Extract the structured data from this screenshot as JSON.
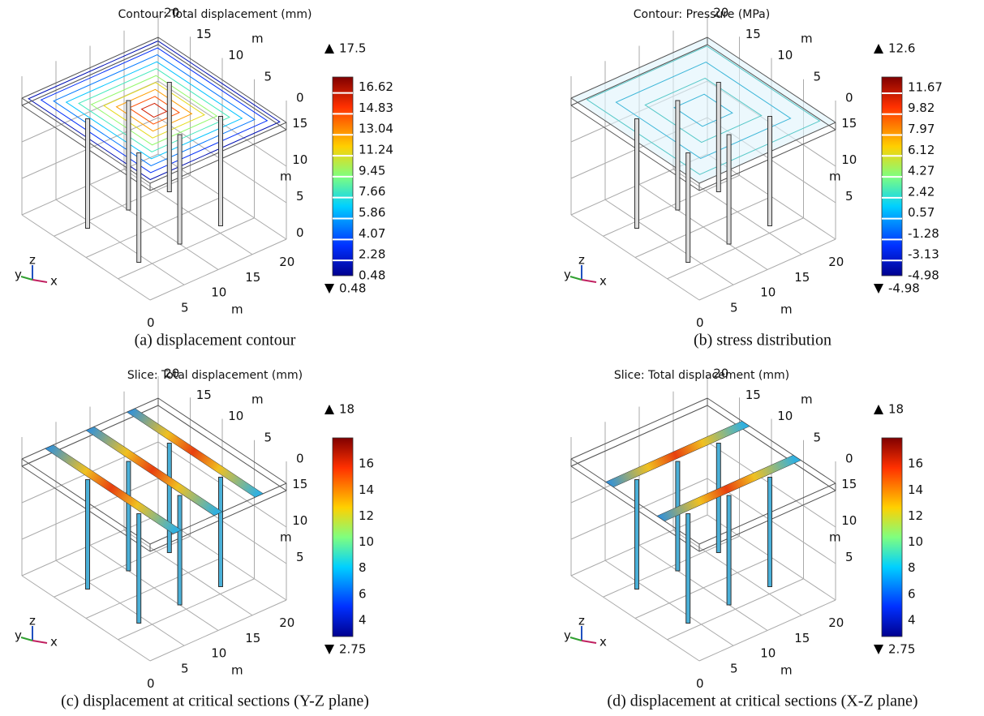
{
  "panels": [
    {
      "title": "Contour: Total displacement (mm)",
      "caption": "(a) displacement contour",
      "x_ticks": [
        0,
        5,
        10,
        15,
        20
      ],
      "y_ticks": [
        20,
        15,
        10,
        5,
        0
      ],
      "z_ticks": [
        15,
        10,
        5,
        0
      ],
      "x_unit": "m",
      "y_unit": "m",
      "z_unit": "m",
      "triad": [
        "y",
        "z",
        "x"
      ],
      "colorbar": {
        "max": 17.5,
        "min": 0.48,
        "ticks": [
          16.62,
          14.83,
          13.04,
          11.24,
          9.45,
          7.66,
          5.86,
          4.07,
          2.28,
          0.48
        ]
      }
    },
    {
      "title": "Contour: Pressure (MPa)",
      "caption": "(b) stress distribution",
      "x_ticks": [
        0,
        5,
        10,
        15,
        20
      ],
      "y_ticks": [
        20,
        15,
        10,
        5,
        0
      ],
      "z_ticks": [
        15,
        10,
        5
      ],
      "x_unit": "m",
      "y_unit": "m",
      "z_unit": "m",
      "triad": [
        "y",
        "z",
        "x"
      ],
      "colorbar": {
        "max": 12.6,
        "min": -4.98,
        "ticks": [
          11.67,
          9.82,
          7.97,
          6.12,
          4.27,
          2.42,
          0.57,
          -1.28,
          -3.13,
          -4.98
        ]
      }
    },
    {
      "title": "Slice: Total displacement (mm)",
      "caption": "(c) displacement at critical sections (Y-Z plane)",
      "x_ticks": [
        0,
        5,
        10,
        15,
        20
      ],
      "y_ticks": [
        20,
        15,
        10,
        5,
        0
      ],
      "z_ticks": [
        15,
        10,
        5
      ],
      "x_unit": "m",
      "y_unit": "m",
      "z_unit": "m",
      "triad": [
        "y",
        "z",
        "x"
      ],
      "colorbar": {
        "max": 18,
        "min": 2.75,
        "ticks": [
          16,
          14,
          12,
          10,
          8,
          6,
          4
        ]
      }
    },
    {
      "title": "Slice: Total displacement (mm)",
      "caption": "(d) displacement at critical sections (X-Z plane)",
      "x_ticks": [
        0,
        5,
        10,
        15,
        20
      ],
      "y_ticks": [
        20,
        15,
        10,
        5,
        0
      ],
      "z_ticks": [
        15,
        10,
        5
      ],
      "x_unit": "m",
      "y_unit": "m",
      "z_unit": "m",
      "triad": [
        "y",
        "z",
        "x"
      ],
      "colorbar": {
        "max": 18,
        "min": 2.75,
        "ticks": [
          16,
          14,
          12,
          10,
          8,
          6,
          4
        ]
      }
    }
  ]
}
